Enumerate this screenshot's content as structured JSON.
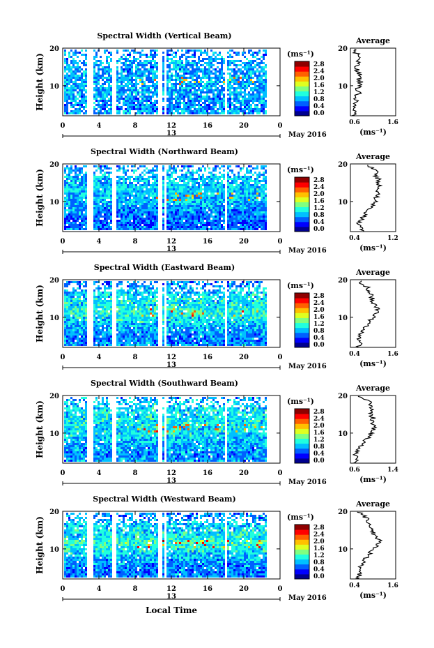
{
  "figure": {
    "xlabel": "Local Time",
    "date_label": "May 2016",
    "day_label": "13",
    "colorbar_unit": "(ms⁻¹)",
    "avg_title": "Average",
    "avg_unit": "(ms⁻¹)",
    "ylabel": "Height (km)",
    "x_ticks": [
      "0",
      "4",
      "8",
      "12",
      "16",
      "20",
      "0"
    ],
    "y_ticks": [
      "10",
      "20"
    ],
    "colorbar_ticks": [
      "0.0",
      "0.4",
      "0.8",
      "1.2",
      "1.6",
      "2.0",
      "2.4",
      "2.8"
    ],
    "colormap": [
      "#00008f",
      "#0000ff",
      "#0060ff",
      "#00c0ff",
      "#20ffdf",
      "#80ff80",
      "#dfff20",
      "#ffc000",
      "#ff6000",
      "#ff0000",
      "#8f0000"
    ]
  },
  "chart_data": [
    {
      "type": "heatmap",
      "title": "Spectral Width (Vertical Beam)",
      "xlabel": "",
      "ylabel": "Height (km)",
      "xlim": [
        0,
        24
      ],
      "ylim": [
        2,
        20
      ],
      "data_gaps_hours": [
        [
          2.5,
          3.3
        ],
        [
          5.3,
          5.7
        ],
        [
          10.5,
          10.8
        ],
        [
          11.1,
          11.4
        ],
        [
          17.7,
          18.0
        ]
      ],
      "colorbar_range": [
        0.0,
        2.8
      ],
      "avg_xlim": [
        0.6,
        1.6
      ],
      "avg_xticks": [
        "0.6",
        "1.6"
      ],
      "avg_profile": {
        "height_km": [
          2,
          3,
          4,
          5,
          6,
          7,
          8,
          9,
          10,
          11,
          12,
          13,
          14,
          15,
          16,
          17,
          18,
          19,
          20
        ],
        "value": [
          0.68,
          0.72,
          0.65,
          0.7,
          0.74,
          0.72,
          0.78,
          0.76,
          0.8,
          0.82,
          0.78,
          0.8,
          0.76,
          0.74,
          0.78,
          0.76,
          0.8,
          0.7,
          0.72
        ]
      }
    },
    {
      "type": "heatmap",
      "title": "Spectral Width (Northward Beam)",
      "xlabel": "",
      "ylabel": "Height (km)",
      "xlim": [
        0,
        24
      ],
      "ylim": [
        2,
        20
      ],
      "data_gaps_hours": [
        [
          2.5,
          3.3
        ],
        [
          5.3,
          5.7
        ],
        [
          10.5,
          10.8
        ],
        [
          11.1,
          11.4
        ],
        [
          17.7,
          18.0
        ]
      ],
      "colorbar_range": [
        0.0,
        2.8
      ],
      "avg_xlim": [
        0.4,
        1.2
      ],
      "avg_xticks": [
        "0.4",
        "1.2"
      ],
      "avg_profile": {
        "height_km": [
          2,
          3,
          4,
          5,
          6,
          7,
          8,
          9,
          10,
          11,
          12,
          13,
          14,
          15,
          16,
          17,
          18,
          19,
          20
        ],
        "value": [
          0.6,
          0.64,
          0.55,
          0.58,
          0.62,
          0.66,
          0.72,
          0.8,
          0.84,
          0.86,
          0.9,
          0.88,
          0.92,
          0.86,
          0.9,
          0.82,
          0.86,
          0.78,
          0.62
        ]
      }
    },
    {
      "type": "heatmap",
      "title": "Spectral Width (Eastward Beam)",
      "xlabel": "",
      "ylabel": "Height (km)",
      "xlim": [
        0,
        24
      ],
      "ylim": [
        2,
        20
      ],
      "data_gaps_hours": [
        [
          2.5,
          3.3
        ],
        [
          5.3,
          5.7
        ],
        [
          10.5,
          10.8
        ],
        [
          11.1,
          11.4
        ],
        [
          17.7,
          18.0
        ]
      ],
      "colorbar_range": [
        0.0,
        2.8
      ],
      "avg_xlim": [
        0.4,
        1.6
      ],
      "avg_xticks": [
        "0.4",
        "1.6"
      ],
      "avg_profile": {
        "height_km": [
          2,
          3,
          4,
          5,
          6,
          7,
          8,
          9,
          10,
          11,
          12,
          13,
          14,
          15,
          16,
          17,
          18,
          19,
          20
        ],
        "value": [
          0.6,
          0.7,
          0.62,
          0.66,
          0.72,
          0.78,
          0.86,
          0.92,
          1.0,
          1.08,
          1.12,
          1.04,
          1.0,
          0.98,
          0.94,
          0.9,
          0.84,
          0.7,
          0.6
        ]
      }
    },
    {
      "type": "heatmap",
      "title": "Spectral Width (Southward Beam)",
      "xlabel": "",
      "ylabel": "Height (km)",
      "xlim": [
        0,
        24
      ],
      "ylim": [
        2,
        20
      ],
      "data_gaps_hours": [
        [
          2.5,
          3.3
        ],
        [
          5.3,
          5.7
        ],
        [
          10.5,
          10.8
        ],
        [
          11.1,
          11.4
        ],
        [
          17.7,
          18.0
        ]
      ],
      "colorbar_range": [
        0.0,
        2.8
      ],
      "avg_xlim": [
        0.6,
        1.4
      ],
      "avg_xticks": [
        "0.6",
        "1.4"
      ],
      "avg_profile": {
        "height_km": [
          2,
          3,
          4,
          5,
          6,
          7,
          8,
          9,
          10,
          11,
          12,
          13,
          14,
          15,
          16,
          17,
          18,
          19,
          20
        ],
        "value": [
          0.7,
          0.74,
          0.68,
          0.72,
          0.76,
          0.8,
          0.86,
          0.92,
          0.96,
          1.0,
          1.02,
          0.98,
          1.0,
          0.96,
          0.98,
          0.94,
          0.96,
          0.84,
          0.74
        ]
      }
    },
    {
      "type": "heatmap",
      "title": "Spectral Width (Westward Beam)",
      "xlabel": "Local Time",
      "ylabel": "Height (km)",
      "xlim": [
        0,
        24
      ],
      "ylim": [
        2,
        20
      ],
      "data_gaps_hours": [
        [
          2.5,
          3.3
        ],
        [
          5.3,
          5.7
        ],
        [
          10.5,
          10.8
        ],
        [
          11.1,
          11.4
        ],
        [
          17.7,
          18.0
        ]
      ],
      "colorbar_range": [
        0.0,
        2.8
      ],
      "avg_xlim": [
        0.4,
        1.6
      ],
      "avg_xticks": [
        "0.4",
        "1.6"
      ],
      "avg_profile": {
        "height_km": [
          2,
          3,
          4,
          5,
          6,
          7,
          8,
          9,
          10,
          11,
          12,
          13,
          14,
          15,
          16,
          17,
          18,
          19,
          20
        ],
        "value": [
          0.6,
          0.66,
          0.62,
          0.66,
          0.72,
          0.76,
          0.84,
          0.92,
          1.02,
          1.1,
          1.22,
          1.06,
          1.0,
          0.98,
          0.94,
          0.9,
          0.84,
          0.72,
          0.62
        ]
      }
    }
  ]
}
